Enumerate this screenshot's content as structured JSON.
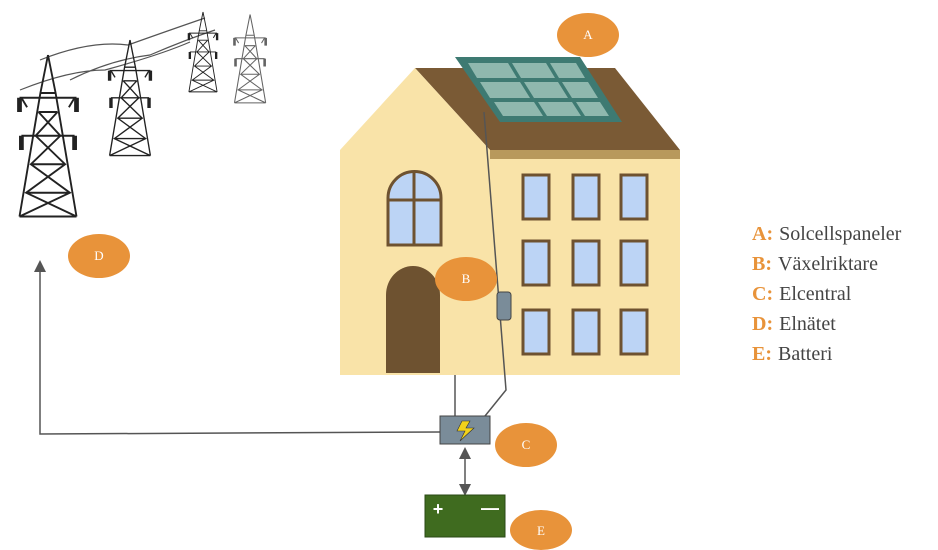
{
  "markers": [
    {
      "label": "A"
    },
    {
      "label": "B"
    },
    {
      "label": "C"
    },
    {
      "label": "D"
    },
    {
      "label": "E"
    }
  ],
  "legend": [
    {
      "key": "A:",
      "text": "Solcellspaneler"
    },
    {
      "key": "B:",
      "text": "Växelriktare"
    },
    {
      "key": "C:",
      "text": "Elcentral"
    },
    {
      "key": "D:",
      "text": "Elnätet"
    },
    {
      "key": "E:",
      "text": "Batteri"
    }
  ],
  "battery": {
    "plus": "+",
    "minus": "—"
  }
}
